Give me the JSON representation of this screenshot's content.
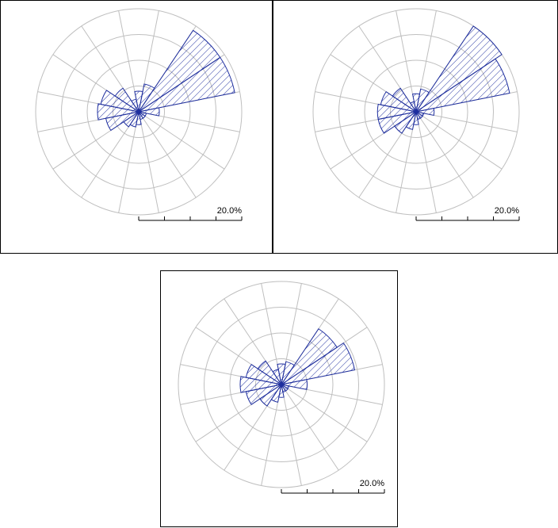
{
  "colors": {
    "rose": "#1f2f9f",
    "grid": "#bfbfbf",
    "scale": "#000000",
    "background": "#ffffff"
  },
  "chart_data": [
    {
      "type": "polar-bar",
      "sectors": 16,
      "unit": "%",
      "scale_label": "20.0%",
      "rmax_percent": 20,
      "ring_step_percent": 5,
      "values": [
        4.0,
        5.5,
        19.0,
        19.0,
        4.0,
        1.5,
        1.5,
        1.5,
        2.5,
        3.0,
        3.5,
        6.5,
        8.0,
        7.5,
        5.5,
        2.5
      ]
    },
    {
      "type": "polar-bar",
      "sectors": 16,
      "unit": "%",
      "scale_label": "20.0%",
      "rmax_percent": 20,
      "ring_step_percent": 5,
      "values": [
        3.5,
        4.5,
        21.0,
        18.5,
        3.5,
        1.5,
        1.5,
        1.5,
        2.5,
        3.5,
        5.0,
        7.5,
        7.5,
        7.0,
        5.5,
        2.0
      ]
    },
    {
      "type": "polar-bar",
      "sectors": 16,
      "unit": "%",
      "scale_label": "20.0%",
      "rmax_percent": 20,
      "ring_step_percent": 5,
      "values": [
        4.0,
        4.5,
        13.0,
        14.5,
        5.0,
        1.5,
        1.5,
        1.5,
        2.5,
        3.5,
        5.0,
        7.0,
        8.0,
        7.0,
        5.5,
        3.0
      ]
    }
  ]
}
